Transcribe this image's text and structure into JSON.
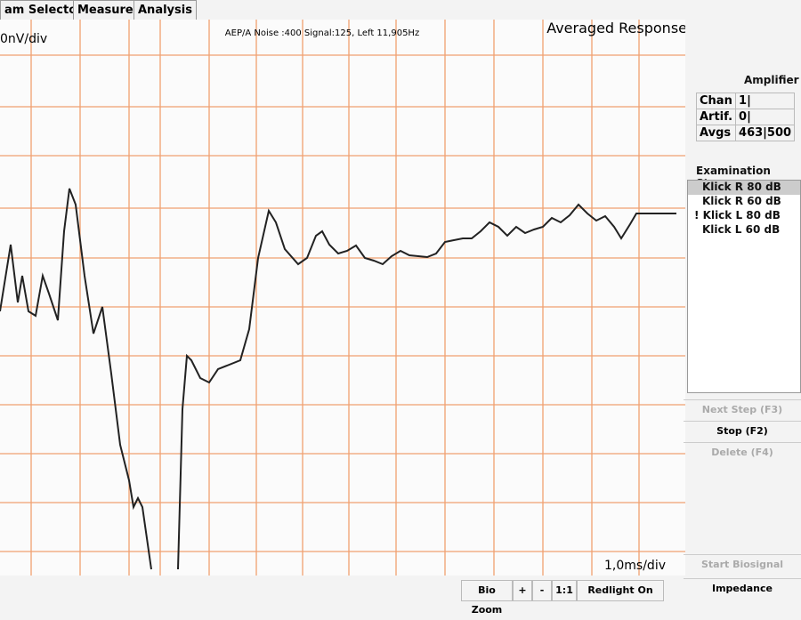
{
  "tabs": [
    "am Selector",
    "Measure",
    "Analysis"
  ],
  "plot": {
    "y_scale": "0nV/div",
    "info": "AEP/A Noise :400 Signal:125, Left 11,905Hz",
    "title": "Averaged Response",
    "x_scale": "1,0ms/div"
  },
  "amplifier": {
    "title": "Amplifier",
    "rows": [
      [
        "Chan",
        "1|"
      ],
      [
        "Artif.",
        "0|"
      ],
      [
        "Avgs",
        "463|500"
      ]
    ]
  },
  "steps": {
    "title": "Examination Steps:",
    "items": [
      "Klick R 80 dB",
      "Klick R 60 dB",
      "! Klick L 80 dB",
      "Klick L 60 dB"
    ]
  },
  "buttons": [
    "Next Step (F3)",
    "Stop (F2)",
    "Delete (F4)",
    "Start Biosignal",
    "Impedance"
  ],
  "toolbar": [
    "Bio Zoom",
    "+",
    "-",
    "1:1",
    "Redlight On"
  ]
}
